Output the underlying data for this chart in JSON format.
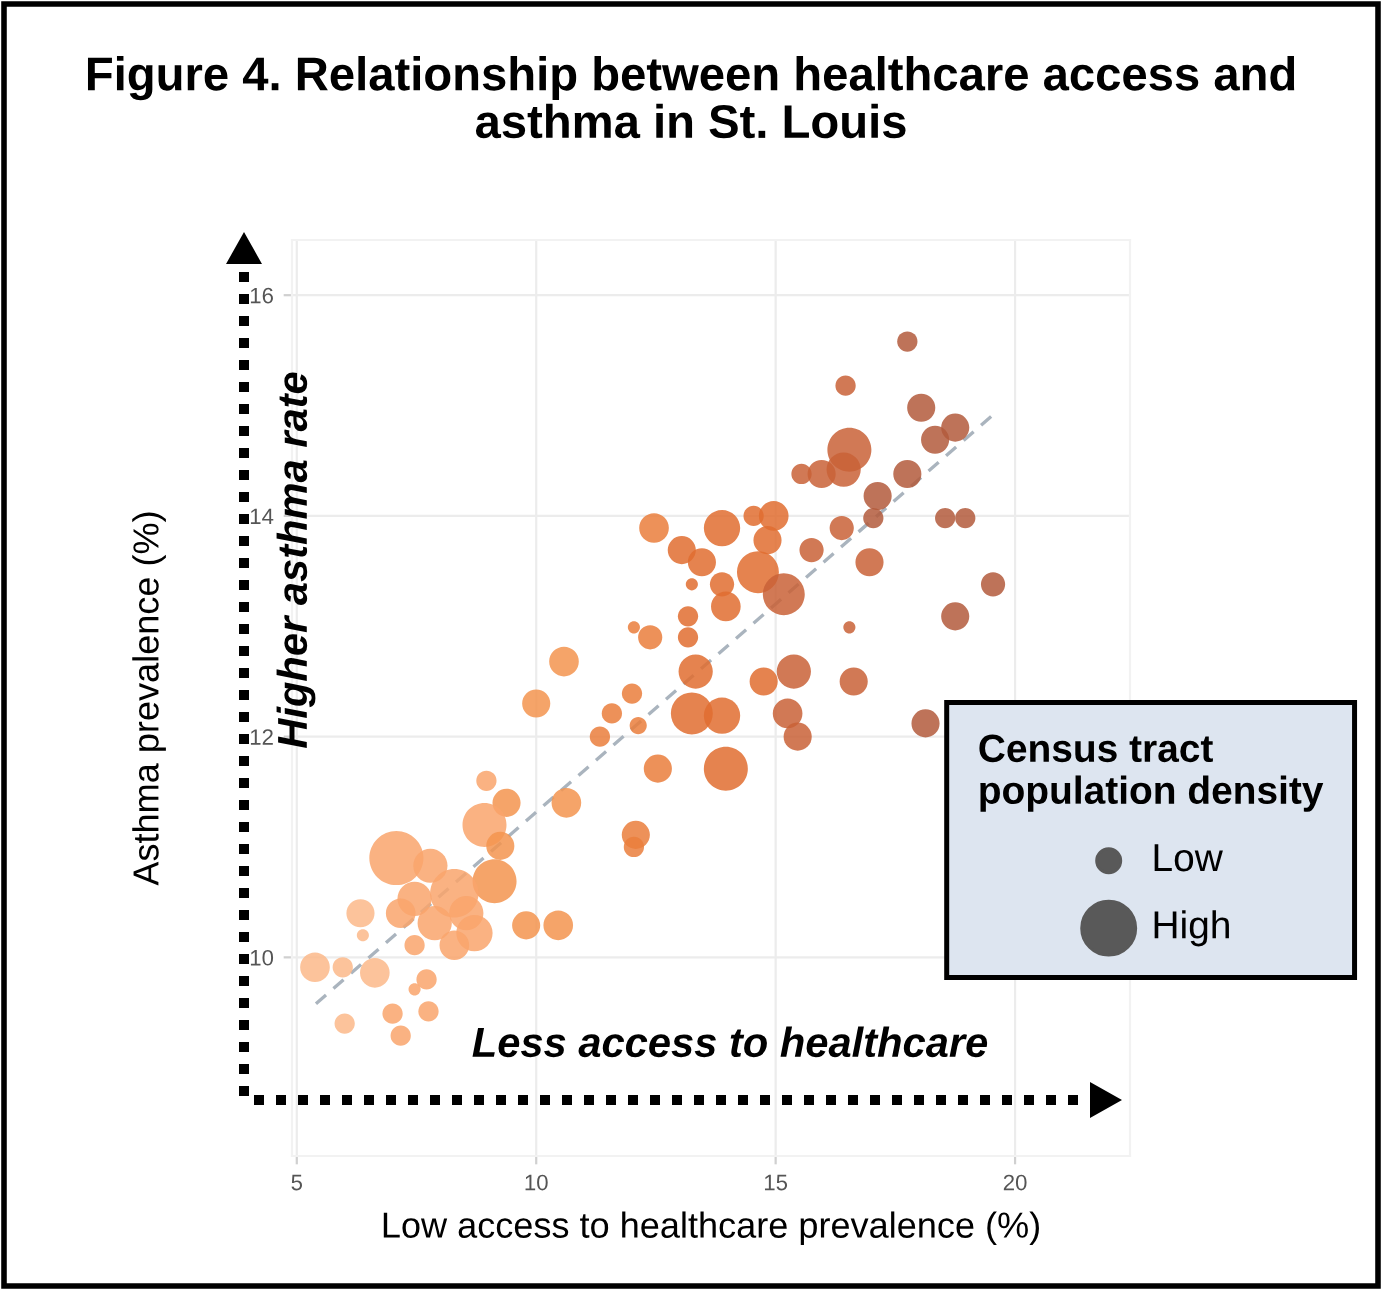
{
  "chart_data": {
    "type": "bubble",
    "title": "Figure 4. Relationship between healthcare access and\nasthma in St. Louis",
    "xlabel": "Low access to healthcare prevalence (%)",
    "ylabel": "Asthma prevalence (%)",
    "legend_title": "Census tract\npopulation density",
    "grid": true,
    "xlim": [
      4.9,
      22.4
    ],
    "xticks": [
      5,
      10,
      15,
      20
    ],
    "ylim": [
      8.2,
      16.5
    ],
    "yticks": [
      10,
      12,
      14,
      16
    ],
    "annotations": [
      "Higher asthma rate",
      "Less access to healthcare"
    ],
    "size_legend": [
      {
        "value": 0.2,
        "label": "Low"
      },
      {
        "value": 1,
        "label": "High"
      }
    ],
    "series": [
      {
        "x": [
          17.75,
          16.46,
          18.04,
          18.75,
          18.33,
          16.54,
          16.42,
          15.96,
          15.54,
          17.75,
          17.13,
          17.04,
          18.54,
          18.96,
          16.38,
          15.75,
          16.96,
          19.54,
          18.75,
          16.54,
          16.63,
          18.13,
          12.46,
          13.88,
          14.54,
          14.96,
          14.83,
          13.04,
          13.46,
          13.25,
          14.63,
          15.17,
          13.88,
          13.96,
          13.17,
          12.04,
          12.38,
          13.17,
          10.58,
          13.33,
          15.38,
          14.75,
          10.0,
          13.25,
          13.88,
          15.25,
          12.0,
          11.58,
          15.46,
          12.13,
          11.33,
          12.54,
          13.96,
          8.96,
          9.38,
          10.63,
          8.92,
          12.08,
          12.04,
          9.25,
          7.08,
          7.79,
          9.13,
          8.29,
          7.46,
          6.33,
          7.17,
          8.54,
          7.88,
          8.71,
          9.79,
          10.46,
          7.46,
          8.29,
          5.38,
          5.96,
          6.63,
          7.71,
          7.46,
          7.0,
          7.75,
          6.0,
          7.17,
          6.38
        ],
        "values": [
          15.58,
          15.18,
          14.98,
          14.8,
          14.69,
          14.6,
          14.42,
          14.38,
          14.38,
          14.38,
          14.18,
          13.98,
          13.98,
          13.98,
          13.89,
          13.69,
          13.58,
          13.38,
          13.09,
          12.99,
          12.5,
          12.12,
          13.89,
          13.89,
          14.0,
          14.0,
          13.78,
          13.69,
          13.58,
          13.38,
          13.49,
          13.29,
          13.38,
          13.18,
          13.09,
          12.99,
          12.9,
          12.9,
          12.68,
          12.59,
          12.59,
          12.5,
          12.3,
          12.21,
          12.19,
          12.21,
          12.39,
          12.21,
          12.0,
          12.1,
          12.0,
          11.71,
          11.71,
          11.6,
          11.4,
          11.4,
          11.2,
          11.11,
          11.0,
          11.01,
          10.9,
          10.83,
          10.69,
          10.58,
          10.53,
          10.4,
          10.4,
          10.4,
          10.31,
          10.22,
          10.29,
          10.29,
          10.11,
          10.11,
          9.91,
          9.91,
          9.86,
          9.8,
          9.71,
          9.49,
          9.51,
          9.4,
          9.29,
          10.2
        ],
        "sizes": [
          0.14,
          0.14,
          0.27,
          0.27,
          0.27,
          0.66,
          0.4,
          0.27,
          0.14,
          0.27,
          0.27,
          0.14,
          0.14,
          0.14,
          0.2,
          0.2,
          0.27,
          0.2,
          0.27,
          0.05,
          0.27,
          0.27,
          0.3,
          0.45,
          0.14,
          0.3,
          0.27,
          0.27,
          0.27,
          0.05,
          0.6,
          0.6,
          0.2,
          0.3,
          0.14,
          0.05,
          0.2,
          0.14,
          0.3,
          0.4,
          0.4,
          0.27,
          0.27,
          0.6,
          0.45,
          0.3,
          0.14,
          0.14,
          0.27,
          0.1,
          0.14,
          0.27,
          0.66,
          0.14,
          0.27,
          0.3,
          0.66,
          0.27,
          0.14,
          0.27,
          1,
          0.4,
          0.66,
          0.8,
          0.4,
          0.27,
          0.3,
          0.4,
          0.4,
          0.45,
          0.27,
          0.3,
          0.14,
          0.3,
          0.3,
          0.14,
          0.3,
          0.14,
          0.05,
          0.14,
          0.14,
          0.14,
          0.14,
          0.05
        ],
        "colors": [
          "#b35a3c",
          "#c96137",
          "#b35a3c",
          "#b35a3c",
          "#b35a3c",
          "#c96137",
          "#c96137",
          "#c96137",
          "#c96137",
          "#b35a3c",
          "#b35a3c",
          "#b35a3c",
          "#b35a3c",
          "#b35a3c",
          "#c96137",
          "#c96137",
          "#c96137",
          "#b35a3c",
          "#b35a3c",
          "#c96137",
          "#c96137",
          "#b35a3c",
          "#ea7e3c",
          "#e06d30",
          "#e06d30",
          "#e06d30",
          "#e06d30",
          "#e06d30",
          "#e06d30",
          "#e06d30",
          "#e06d30",
          "#c96137",
          "#e06d30",
          "#e06d30",
          "#e06d30",
          "#ea7e3c",
          "#ea7e3c",
          "#e06d30",
          "#f3944f",
          "#e06d30",
          "#c96137",
          "#e06d30",
          "#f3944f",
          "#e06d30",
          "#e06d30",
          "#c96137",
          "#ea7e3c",
          "#ea7e3c",
          "#c96137",
          "#ea7e3c",
          "#ea7e3c",
          "#ea7e3c",
          "#e06d30",
          "#f9a56c",
          "#f3944f",
          "#f3944f",
          "#f9a56c",
          "#ea7e3c",
          "#ea7e3c",
          "#f3944f",
          "#f9a56c",
          "#f9a56c",
          "#f3944f",
          "#f9a56c",
          "#f9a56c",
          "#fbb98a",
          "#f9a56c",
          "#f9a56c",
          "#f9a56c",
          "#f9a56c",
          "#f3944f",
          "#f3944f",
          "#f9a56c",
          "#f9a56c",
          "#fbb98a",
          "#fbb98a",
          "#fbb98a",
          "#f9a56c",
          "#f9a56c",
          "#f9a56c",
          "#f9a56c",
          "#fbb98a",
          "#f9a56c",
          "#fbb98a"
        ]
      },
      {
        "type": "line",
        "x": [
          5.4,
          19.5
        ],
        "values": [
          9.58,
          14.9
        ],
        "color": "#aab4be",
        "line_style": "dashed"
      }
    ]
  }
}
